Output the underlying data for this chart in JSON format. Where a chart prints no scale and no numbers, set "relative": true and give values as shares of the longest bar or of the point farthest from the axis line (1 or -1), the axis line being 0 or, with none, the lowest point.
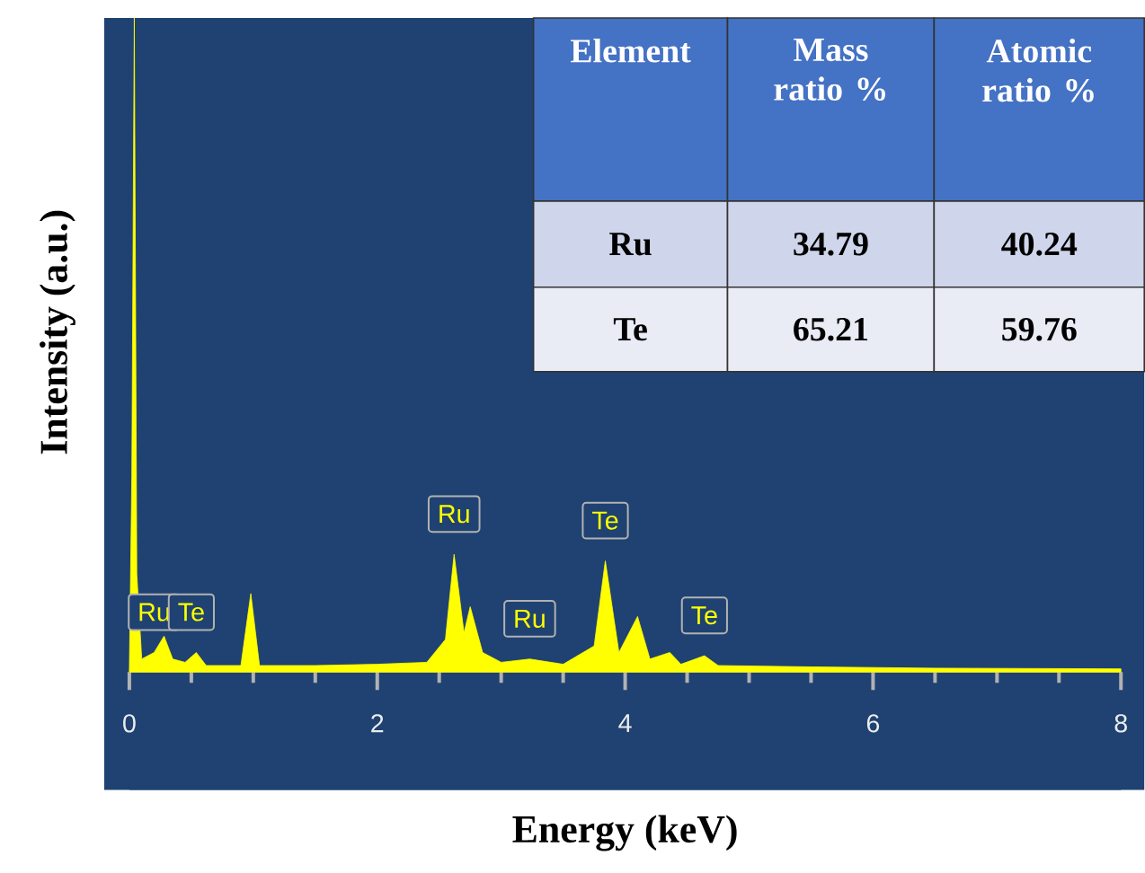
{
  "chart_data": {
    "type": "area",
    "relative": true,
    "xlabel": "Energy (keV)",
    "ylabel": "Intensity (a.u.)",
    "xlim": [
      0,
      8
    ],
    "xticks": [
      0,
      2,
      4,
      6,
      8
    ],
    "x": [
      0,
      0.02,
      0.04,
      0.06,
      0.1,
      0.2,
      0.28,
      0.35,
      0.45,
      0.54,
      0.62,
      0.9,
      0.98,
      1.05,
      1.5,
      2.0,
      2.4,
      2.55,
      2.62,
      2.7,
      2.75,
      2.85,
      3.0,
      3.23,
      3.5,
      3.75,
      3.84,
      3.95,
      4.1,
      4.2,
      4.36,
      4.45,
      4.64,
      4.75,
      5.5,
      6.5,
      8
    ],
    "values": [
      0,
      0.3,
      1.0,
      0.15,
      0.02,
      0.03,
      0.055,
      0.02,
      0.015,
      0.03,
      0.01,
      0.01,
      0.12,
      0.01,
      0.01,
      0.012,
      0.015,
      0.05,
      0.18,
      0.06,
      0.1,
      0.03,
      0.015,
      0.02,
      0.012,
      0.04,
      0.17,
      0.03,
      0.085,
      0.02,
      0.03,
      0.012,
      0.025,
      0.01,
      0.008,
      0.006,
      0.005
    ],
    "color": "#ffff00",
    "annotations": [
      {
        "text": "Ru",
        "x": 0.2,
        "y": 0.03
      },
      {
        "text": "Te",
        "x": 0.5,
        "y": 0.03
      },
      {
        "text": "Ru",
        "x": 2.62,
        "y": 0.18
      },
      {
        "text": "Ru",
        "x": 3.23,
        "y": 0.02
      },
      {
        "text": "Te",
        "x": 3.84,
        "y": 0.17
      },
      {
        "text": "Te",
        "x": 4.64,
        "y": 0.025
      },
      "Element",
      "Mass ratio %",
      "Atomic ratio %",
      "Ru",
      "34.79",
      "40.24",
      "Te",
      "65.21",
      "59.76"
    ]
  }
}
